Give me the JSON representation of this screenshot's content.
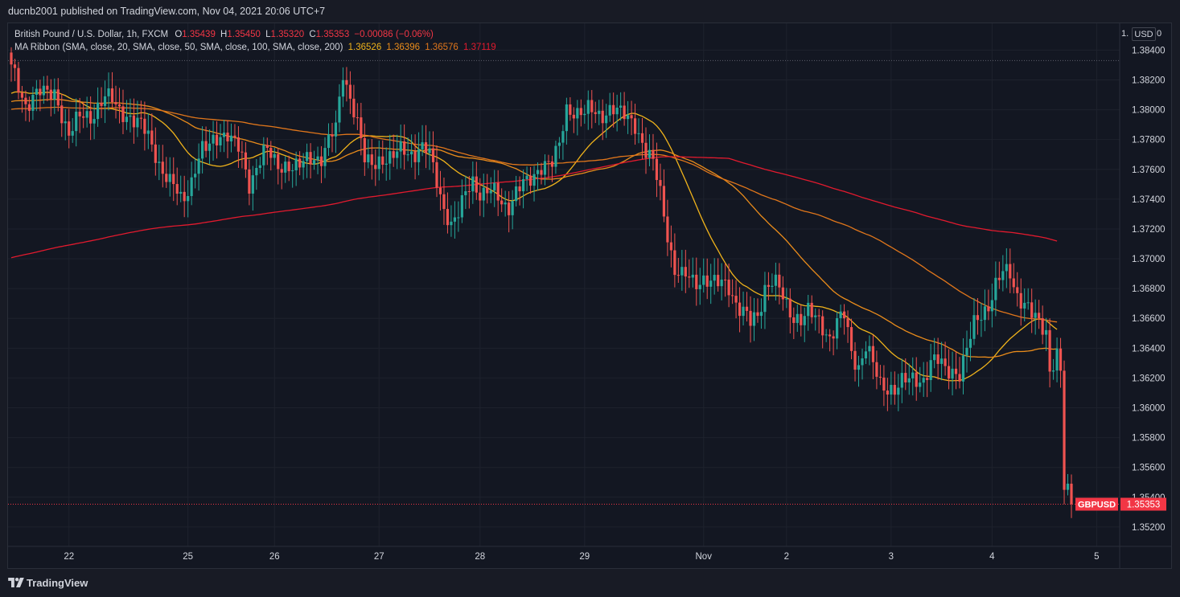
{
  "header": {
    "publisher": "ducnb2001 published on TradingView.com, Nov 04, 2021 20:06 UTC+7"
  },
  "legend": {
    "symbol": "British Pound / U.S. Dollar, 1h, FXCM",
    "o_label": "O",
    "o_value": "1.35439",
    "h_label": "H",
    "h_value": "1.35450",
    "l_label": "L",
    "l_value": "1.35320",
    "c_label": "C",
    "c_value": "1.35353",
    "change": "−0.00086 (−0.06%)",
    "ma_label": "MA Ribbon (SMA, close, 20, SMA, close, 50, SMA, close, 100, SMA, close, 200)",
    "ma_values": [
      "1.36526",
      "1.36396",
      "1.36576",
      "1.37119"
    ]
  },
  "currency_button": "USD",
  "currency_clip_left": "1.",
  "currency_clip_right": "0",
  "footer": {
    "brand": "TradingView"
  },
  "colors": {
    "background": "#131722",
    "page": "#181b25",
    "grid": "#1e222d",
    "text": "#d1d4dc",
    "up": "#26a69a",
    "down": "#ef5350",
    "ma20": "#f0b31b",
    "ma50": "#ea8c1b",
    "ma100": "#e0761b",
    "ma200": "#e21a2e",
    "price_label": "#f23645"
  },
  "chart_data": {
    "type": "candlestick",
    "title": "British Pound / U.S. Dollar, 1h, FXCM",
    "ylim": [
      1.3507,
      1.3858
    ],
    "y_ticks": [
      "1.35200",
      "1.35400",
      "1.35600",
      "1.35800",
      "1.36000",
      "1.36200",
      "1.36400",
      "1.36600",
      "1.36800",
      "1.37000",
      "1.37200",
      "1.37400",
      "1.37600",
      "1.37800",
      "1.38000",
      "1.38200",
      "1.38400"
    ],
    "x_ticks": [
      {
        "label": "22",
        "bar": 16
      },
      {
        "label": "25",
        "bar": 49
      },
      {
        "label": "26",
        "bar": 73
      },
      {
        "label": "27",
        "bar": 102
      },
      {
        "label": "28",
        "bar": 130
      },
      {
        "label": "29",
        "bar": 159
      },
      {
        "label": "Nov",
        "bar": 192
      },
      {
        "label": "2",
        "bar": 215
      },
      {
        "label": "3",
        "bar": 244
      },
      {
        "label": "4",
        "bar": 272
      },
      {
        "label": "5",
        "bar": 301
      }
    ],
    "price_anchors": [
      [
        0,
        1.3825
      ],
      [
        4,
        1.3805
      ],
      [
        8,
        1.3812
      ],
      [
        12,
        1.381
      ],
      [
        16,
        1.3785
      ],
      [
        20,
        1.3795
      ],
      [
        24,
        1.3802
      ],
      [
        28,
        1.3808
      ],
      [
        32,
        1.3795
      ],
      [
        36,
        1.379
      ],
      [
        40,
        1.3772
      ],
      [
        44,
        1.3748
      ],
      [
        47,
        1.3742
      ],
      [
        50,
        1.3752
      ],
      [
        53,
        1.3772
      ],
      [
        56,
        1.378
      ],
      [
        60,
        1.3785
      ],
      [
        63,
        1.3772
      ],
      [
        66,
        1.3752
      ],
      [
        68,
        1.3764
      ],
      [
        71,
        1.377
      ],
      [
        74,
        1.3765
      ],
      [
        78,
        1.376
      ],
      [
        82,
        1.3766
      ],
      [
        86,
        1.377
      ],
      [
        90,
        1.3785
      ],
      [
        92,
        1.3828
      ],
      [
        94,
        1.381
      ],
      [
        96,
        1.3788
      ],
      [
        98,
        1.3766
      ],
      [
        101,
        1.3765
      ],
      [
        105,
        1.3768
      ],
      [
        109,
        1.3772
      ],
      [
        113,
        1.3774
      ],
      [
        116,
        1.3768
      ],
      [
        118,
        1.3755
      ],
      [
        120,
        1.3735
      ],
      [
        122,
        1.372
      ],
      [
        124,
        1.373
      ],
      [
        126,
        1.3745
      ],
      [
        128,
        1.3752
      ],
      [
        130,
        1.3745
      ],
      [
        132,
        1.3745
      ],
      [
        135,
        1.374
      ],
      [
        138,
        1.3738
      ],
      [
        141,
        1.3745
      ],
      [
        144,
        1.3755
      ],
      [
        147,
        1.3762
      ],
      [
        150,
        1.3765
      ],
      [
        152,
        1.3775
      ],
      [
        154,
        1.38
      ],
      [
        156,
        1.3802
      ],
      [
        159,
        1.3795
      ],
      [
        162,
        1.38
      ],
      [
        166,
        1.3798
      ],
      [
        170,
        1.3798
      ],
      [
        173,
        1.379
      ],
      [
        176,
        1.3772
      ],
      [
        178,
        1.3762
      ],
      [
        180,
        1.3745
      ],
      [
        182,
        1.372
      ],
      [
        184,
        1.369
      ],
      [
        186,
        1.3685
      ],
      [
        188,
        1.369
      ],
      [
        190,
        1.3686
      ],
      [
        193,
        1.3684
      ],
      [
        196,
        1.3684
      ],
      [
        199,
        1.3682
      ],
      [
        201,
        1.3672
      ],
      [
        203,
        1.3662
      ],
      [
        205,
        1.3655
      ],
      [
        207,
        1.3665
      ],
      [
        209,
        1.3682
      ],
      [
        211,
        1.3682
      ],
      [
        213,
        1.368
      ],
      [
        215,
        1.367
      ],
      [
        217,
        1.366
      ],
      [
        219,
        1.366
      ],
      [
        221,
        1.3665
      ],
      [
        223,
        1.3658
      ],
      [
        225,
        1.3655
      ],
      [
        227,
        1.365
      ],
      [
        229,
        1.3655
      ],
      [
        231,
        1.366
      ],
      [
        233,
        1.364
      ],
      [
        235,
        1.3628
      ],
      [
        237,
        1.364
      ],
      [
        239,
        1.363
      ],
      [
        241,
        1.3615
      ],
      [
        243,
        1.3612
      ],
      [
        245,
        1.3615
      ],
      [
        247,
        1.3618
      ],
      [
        249,
        1.3615
      ],
      [
        251,
        1.362
      ],
      [
        253,
        1.3622
      ],
      [
        255,
        1.3628
      ],
      [
        257,
        1.363
      ],
      [
        259,
        1.3628
      ],
      [
        261,
        1.3625
      ],
      [
        263,
        1.3622
      ],
      [
        265,
        1.364
      ],
      [
        267,
        1.3655
      ],
      [
        269,
        1.3662
      ],
      [
        271,
        1.3672
      ],
      [
        273,
        1.3682
      ],
      [
        275,
        1.3687
      ],
      [
        277,
        1.3692
      ],
      [
        279,
        1.3678
      ],
      [
        281,
        1.3668
      ],
      [
        283,
        1.3662
      ],
      [
        285,
        1.3658
      ],
      [
        287,
        1.365
      ],
      [
        288,
        1.3625
      ],
      [
        290,
        1.3638
      ],
      [
        291,
        1.3625
      ],
      [
        292,
        1.3546
      ],
      [
        294,
        1.3535
      ]
    ],
    "last_bar": 294,
    "last_close": 1.35353,
    "ma_periods": [
      20,
      50,
      100,
      200
    ],
    "ma_start": [
      1.381,
      1.3805,
      1.38,
      1.37
    ],
    "ma_end": [
      1.36526,
      1.36396,
      1.36576,
      1.37119
    ],
    "price_label": {
      "symbol": "GBPUSD",
      "value": "1.35353"
    }
  }
}
